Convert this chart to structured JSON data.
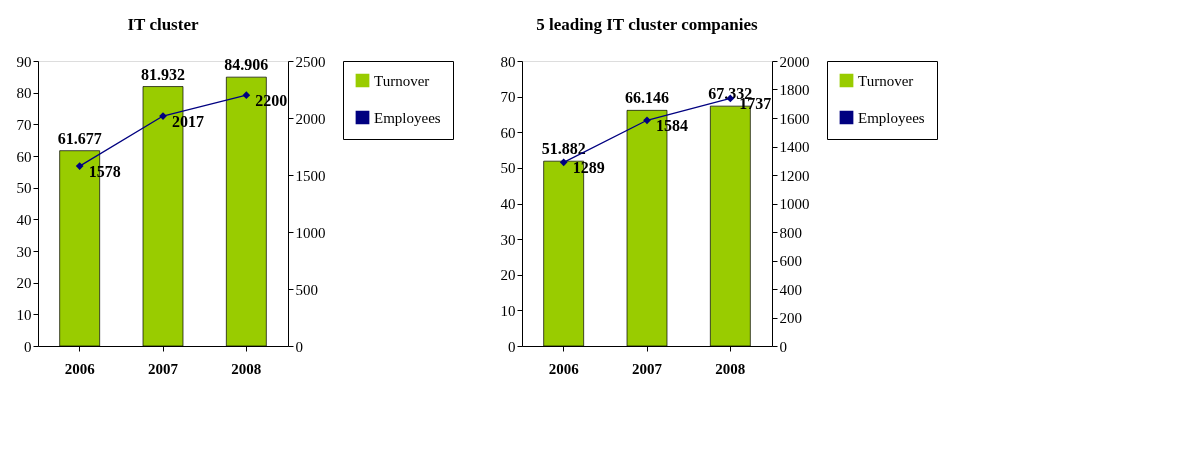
{
  "chart_data": [
    {
      "type": "bar",
      "title": "IT cluster",
      "categories": [
        "2006",
        "2007",
        "2008"
      ],
      "ylim": [
        0,
        90
      ],
      "yticks": [
        0,
        10,
        20,
        30,
        40,
        50,
        60,
        70,
        80,
        90
      ],
      "y2lim": [
        0,
        2500
      ],
      "y2ticks": [
        0,
        500,
        1000,
        1500,
        2000,
        2500
      ],
      "data_labels": true,
      "grid": false,
      "legend": "right",
      "series": [
        {
          "name": "Turnover",
          "color": "#99cc00",
          "values": [
            61.677,
            81.932,
            84.906
          ]
        },
        {
          "name": "Employees",
          "type": "line",
          "axis": "y2",
          "color": "#000080",
          "marker": "diamond",
          "values": [
            1578,
            2017,
            2200
          ]
        }
      ]
    },
    {
      "type": "bar",
      "title": "5 leading IT cluster companies",
      "categories": [
        "2006",
        "2007",
        "2008"
      ],
      "ylim": [
        0,
        80
      ],
      "yticks": [
        0,
        10,
        20,
        30,
        40,
        50,
        60,
        70,
        80
      ],
      "y2lim": [
        0,
        2000
      ],
      "y2ticks": [
        0,
        200,
        400,
        600,
        800,
        1000,
        1200,
        1400,
        1600,
        1800,
        2000
      ],
      "data_labels": true,
      "grid": false,
      "legend": "right",
      "series": [
        {
          "name": "Turnover",
          "color": "#99cc00",
          "values": [
            51.882,
            66.146,
            67.332
          ]
        },
        {
          "name": "Employees",
          "type": "line",
          "axis": "y2",
          "color": "#000080",
          "marker": "diamond",
          "values": [
            1289,
            1584,
            1737
          ]
        }
      ]
    }
  ]
}
